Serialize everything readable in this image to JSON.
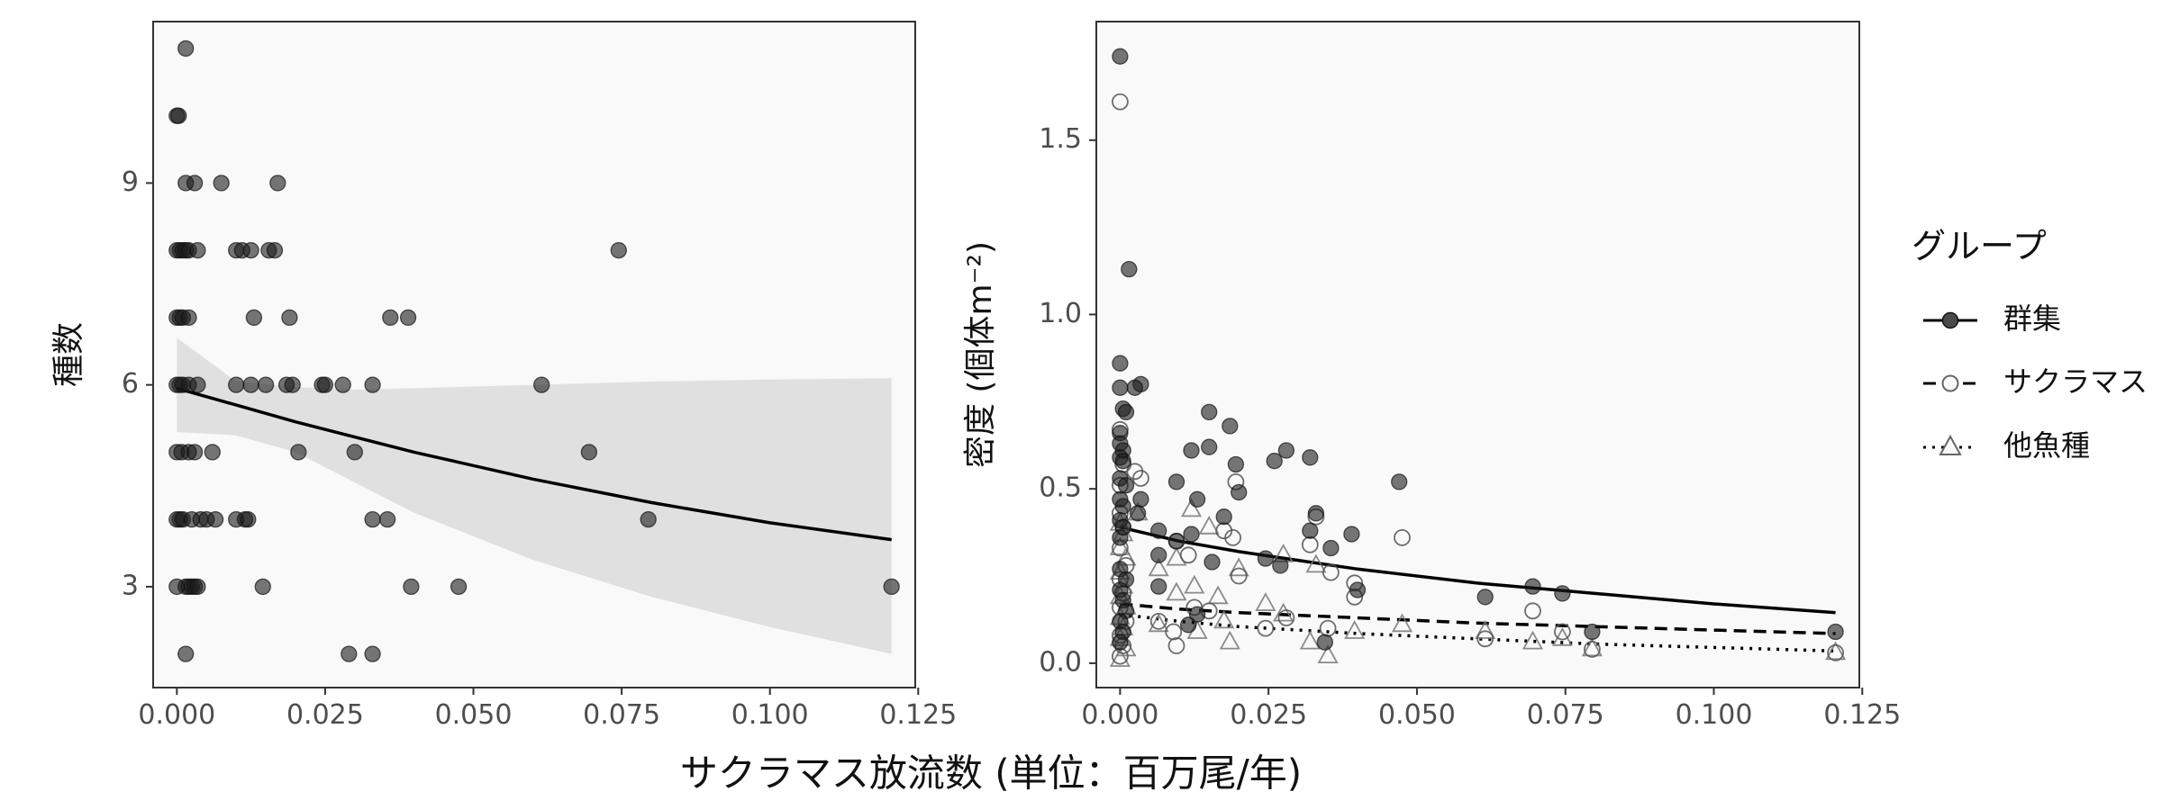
{
  "x_axis_label": "サクラマス放流数 (単位：百万尾/年)",
  "chart_data": [
    {
      "type": "scatter",
      "panel": "left",
      "ylabel": "種数",
      "xlim": [
        -0.004,
        0.1245
      ],
      "ylim": [
        1.5,
        11.4
      ],
      "xticks": [
        0.0,
        0.025,
        0.05,
        0.075,
        0.1,
        0.125
      ],
      "xtick_labels": [
        "0.000",
        "0.025",
        "0.050",
        "0.075",
        "0.100",
        "0.125"
      ],
      "yticks": [
        3,
        6,
        9
      ],
      "ytick_labels": [
        "3",
        "6",
        "9"
      ],
      "grid": false,
      "series": [
        {
          "points": [
            [
              0.0015,
              11
            ],
            [
              0.0,
              10
            ],
            [
              0.0003,
              10
            ],
            [
              0.0015,
              9
            ],
            [
              0.003,
              9
            ],
            [
              0.0075,
              9
            ],
            [
              0.017,
              9
            ],
            [
              0.0,
              8
            ],
            [
              0.0005,
              8
            ],
            [
              0.001,
              8
            ],
            [
              0.0015,
              8
            ],
            [
              0.002,
              8
            ],
            [
              0.0035,
              8
            ],
            [
              0.01,
              8
            ],
            [
              0.011,
              8
            ],
            [
              0.0125,
              8
            ],
            [
              0.0155,
              8
            ],
            [
              0.0165,
              8
            ],
            [
              0.0745,
              8
            ],
            [
              0.0,
              7
            ],
            [
              0.0005,
              7
            ],
            [
              0.001,
              7
            ],
            [
              0.002,
              7
            ],
            [
              0.013,
              7
            ],
            [
              0.019,
              7
            ],
            [
              0.036,
              7
            ],
            [
              0.039,
              7
            ],
            [
              0.0,
              6
            ],
            [
              0.0005,
              6
            ],
            [
              0.001,
              6
            ],
            [
              0.002,
              6
            ],
            [
              0.0035,
              6
            ],
            [
              0.01,
              6
            ],
            [
              0.0125,
              6
            ],
            [
              0.015,
              6
            ],
            [
              0.0185,
              6
            ],
            [
              0.0195,
              6
            ],
            [
              0.0245,
              6
            ],
            [
              0.025,
              6
            ],
            [
              0.028,
              6
            ],
            [
              0.033,
              6
            ],
            [
              0.0615,
              6
            ],
            [
              0.0,
              5
            ],
            [
              0.0008,
              5
            ],
            [
              0.002,
              5
            ],
            [
              0.003,
              5
            ],
            [
              0.006,
              5
            ],
            [
              0.0205,
              5
            ],
            [
              0.03,
              5
            ],
            [
              0.0695,
              5
            ],
            [
              0.0,
              4
            ],
            [
              0.0005,
              4
            ],
            [
              0.001,
              4
            ],
            [
              0.0025,
              4
            ],
            [
              0.004,
              4
            ],
            [
              0.005,
              4
            ],
            [
              0.0065,
              4
            ],
            [
              0.01,
              4
            ],
            [
              0.0115,
              4
            ],
            [
              0.012,
              4
            ],
            [
              0.033,
              4
            ],
            [
              0.0355,
              4
            ],
            [
              0.0795,
              4
            ],
            [
              0.0,
              3
            ],
            [
              0.0015,
              3
            ],
            [
              0.002,
              3
            ],
            [
              0.0025,
              3
            ],
            [
              0.003,
              3
            ],
            [
              0.0035,
              3
            ],
            [
              0.0145,
              3
            ],
            [
              0.0395,
              3
            ],
            [
              0.0475,
              3
            ],
            [
              0.1205,
              3
            ],
            [
              0.0015,
              2
            ],
            [
              0.029,
              2
            ],
            [
              0.033,
              2
            ]
          ]
        }
      ],
      "fit": {
        "x": [
          0.0,
          0.02,
          0.04,
          0.06,
          0.08,
          0.1,
          0.1205
        ],
        "y": [
          5.95,
          5.45,
          5.0,
          4.6,
          4.25,
          3.95,
          3.7
        ]
      },
      "ci_band": {
        "x": [
          0.0,
          0.01,
          0.02,
          0.03,
          0.04,
          0.06,
          0.08,
          0.1,
          0.1205
        ],
        "upper": [
          6.7,
          6.05,
          5.97,
          5.93,
          5.95,
          6.0,
          6.05,
          6.08,
          6.1
        ],
        "lower": [
          5.3,
          5.25,
          5.0,
          4.55,
          4.1,
          3.4,
          2.85,
          2.4,
          2.0
        ]
      }
    },
    {
      "type": "scatter",
      "panel": "right",
      "ylabel": "密度 (個体m⁻²)",
      "xlim": [
        -0.004,
        0.1245
      ],
      "ylim": [
        -0.07,
        1.84
      ],
      "xticks": [
        0.0,
        0.025,
        0.05,
        0.075,
        0.1,
        0.125
      ],
      "xtick_labels": [
        "0.000",
        "0.025",
        "0.050",
        "0.075",
        "0.100",
        "0.125"
      ],
      "yticks": [
        0.0,
        0.5,
        1.0,
        1.5
      ],
      "ytick_labels": [
        "0.0",
        "0.5",
        "1.0",
        "1.5"
      ],
      "grid": false,
      "legend": {
        "title": "グループ",
        "position": "right",
        "entries": [
          "群集",
          "サクラマス",
          "他魚種"
        ]
      },
      "series": [
        {
          "name": "群集",
          "marker": "filled-circle",
          "linestyle": "solid",
          "points": [
            [
              0.0,
              1.74
            ],
            [
              0.0015,
              1.13
            ],
            [
              0.0,
              0.86
            ],
            [
              0.0,
              0.79
            ],
            [
              0.0035,
              0.8
            ],
            [
              0.0025,
              0.79
            ],
            [
              0.0005,
              0.73
            ],
            [
              0.001,
              0.72
            ],
            [
              0.0,
              0.66
            ],
            [
              0.0,
              0.63
            ],
            [
              0.0005,
              0.61
            ],
            [
              0.0,
              0.59
            ],
            [
              0.0005,
              0.58
            ],
            [
              0.0,
              0.53
            ],
            [
              0.001,
              0.51
            ],
            [
              0.0,
              0.47
            ],
            [
              0.0035,
              0.47
            ],
            [
              0.0005,
              0.45
            ],
            [
              0.003,
              0.43
            ],
            [
              0.0,
              0.41
            ],
            [
              0.0005,
              0.39
            ],
            [
              0.0,
              0.36
            ],
            [
              0.0065,
              0.38
            ],
            [
              0.0065,
              0.31
            ],
            [
              0.0,
              0.27
            ],
            [
              0.001,
              0.24
            ],
            [
              0.0,
              0.21
            ],
            [
              0.0005,
              0.18
            ],
            [
              0.001,
              0.15
            ],
            [
              0.0,
              0.12
            ],
            [
              0.0005,
              0.09
            ],
            [
              0.0,
              0.06
            ],
            [
              0.0095,
              0.52
            ],
            [
              0.015,
              0.72
            ],
            [
              0.0185,
              0.68
            ],
            [
              0.0195,
              0.57
            ],
            [
              0.015,
              0.62
            ],
            [
              0.012,
              0.61
            ],
            [
              0.013,
              0.47
            ],
            [
              0.0175,
              0.42
            ],
            [
              0.02,
              0.49
            ],
            [
              0.028,
              0.61
            ],
            [
              0.026,
              0.58
            ],
            [
              0.032,
              0.59
            ],
            [
              0.033,
              0.43
            ],
            [
              0.032,
              0.38
            ],
            [
              0.0355,
              0.33
            ],
            [
              0.039,
              0.37
            ],
            [
              0.0345,
              0.06
            ],
            [
              0.04,
              0.21
            ],
            [
              0.047,
              0.52
            ],
            [
              0.027,
              0.28
            ],
            [
              0.0245,
              0.3
            ],
            [
              0.0155,
              0.29
            ],
            [
              0.0095,
              0.35
            ],
            [
              0.012,
              0.37
            ],
            [
              0.0065,
              0.22
            ],
            [
              0.013,
              0.14
            ],
            [
              0.0115,
              0.11
            ],
            [
              0.0615,
              0.19
            ],
            [
              0.0695,
              0.22
            ],
            [
              0.0745,
              0.2
            ],
            [
              0.0795,
              0.09
            ],
            [
              0.1205,
              0.09
            ]
          ]
        },
        {
          "name": "サクラマス",
          "marker": "open-circle",
          "linestyle": "dashed",
          "points": [
            [
              0.0,
              1.61
            ],
            [
              0.0,
              0.67
            ],
            [
              0.0005,
              0.57
            ],
            [
              0.0,
              0.51
            ],
            [
              0.0025,
              0.55
            ],
            [
              0.0,
              0.43
            ],
            [
              0.0005,
              0.39
            ],
            [
              0.0,
              0.33
            ],
            [
              0.001,
              0.28
            ],
            [
              0.0,
              0.24
            ],
            [
              0.0005,
              0.2
            ],
            [
              0.0,
              0.16
            ],
            [
              0.001,
              0.12
            ],
            [
              0.0,
              0.08
            ],
            [
              0.0005,
              0.05
            ],
            [
              0.0,
              0.02
            ],
            [
              0.0035,
              0.53
            ],
            [
              0.0095,
              0.35
            ],
            [
              0.0115,
              0.31
            ],
            [
              0.0175,
              0.38
            ],
            [
              0.019,
              0.36
            ],
            [
              0.0195,
              0.52
            ],
            [
              0.02,
              0.25
            ],
            [
              0.0125,
              0.16
            ],
            [
              0.015,
              0.15
            ],
            [
              0.0065,
              0.12
            ],
            [
              0.0095,
              0.05
            ],
            [
              0.009,
              0.09
            ],
            [
              0.0245,
              0.1
            ],
            [
              0.028,
              0.13
            ],
            [
              0.032,
              0.34
            ],
            [
              0.033,
              0.42
            ],
            [
              0.0355,
              0.26
            ],
            [
              0.0395,
              0.19
            ],
            [
              0.0395,
              0.23
            ],
            [
              0.035,
              0.1
            ],
            [
              0.0475,
              0.36
            ],
            [
              0.0615,
              0.07
            ],
            [
              0.0695,
              0.15
            ],
            [
              0.0745,
              0.09
            ],
            [
              0.0795,
              0.04
            ],
            [
              0.1205,
              0.03
            ]
          ]
        },
        {
          "name": "他魚種",
          "marker": "open-triangle",
          "linestyle": "dotted",
          "points": [
            [
              0.0,
              0.4
            ],
            [
              0.0005,
              0.37
            ],
            [
              0.0,
              0.33
            ],
            [
              0.001,
              0.3
            ],
            [
              0.0,
              0.26
            ],
            [
              0.0005,
              0.22
            ],
            [
              0.0,
              0.19
            ],
            [
              0.001,
              0.16
            ],
            [
              0.0,
              0.13
            ],
            [
              0.0005,
              0.1
            ],
            [
              0.0,
              0.07
            ],
            [
              0.001,
              0.04
            ],
            [
              0.0,
              0.01
            ],
            [
              0.003,
              0.43
            ],
            [
              0.0065,
              0.27
            ],
            [
              0.0065,
              0.11
            ],
            [
              0.0095,
              0.3
            ],
            [
              0.0095,
              0.2
            ],
            [
              0.012,
              0.44
            ],
            [
              0.0125,
              0.22
            ],
            [
              0.013,
              0.09
            ],
            [
              0.015,
              0.39
            ],
            [
              0.0165,
              0.19
            ],
            [
              0.0175,
              0.12
            ],
            [
              0.0185,
              0.06
            ],
            [
              0.02,
              0.27
            ],
            [
              0.0245,
              0.17
            ],
            [
              0.0275,
              0.31
            ],
            [
              0.0275,
              0.14
            ],
            [
              0.032,
              0.06
            ],
            [
              0.033,
              0.28
            ],
            [
              0.035,
              0.02
            ],
            [
              0.0395,
              0.09
            ],
            [
              0.0475,
              0.11
            ],
            [
              0.0615,
              0.09
            ],
            [
              0.0695,
              0.06
            ],
            [
              0.0745,
              0.07
            ],
            [
              0.0795,
              0.04
            ],
            [
              0.1205,
              0.03
            ]
          ]
        }
      ],
      "fits": [
        {
          "name": "群集",
          "linestyle": "solid",
          "x": [
            0.0,
            0.01,
            0.02,
            0.03,
            0.04,
            0.06,
            0.08,
            0.1,
            0.1205
          ],
          "y": [
            0.39,
            0.35,
            0.32,
            0.295,
            0.27,
            0.23,
            0.2,
            0.17,
            0.145
          ]
        },
        {
          "name": "サクラマス",
          "linestyle": "dashed",
          "x": [
            0.0,
            0.01,
            0.02,
            0.04,
            0.06,
            0.08,
            0.1,
            0.1205
          ],
          "y": [
            0.17,
            0.155,
            0.145,
            0.13,
            0.115,
            0.105,
            0.095,
            0.085
          ]
        },
        {
          "name": "他魚種",
          "linestyle": "dotted",
          "x": [
            0.0,
            0.01,
            0.02,
            0.04,
            0.06,
            0.08,
            0.1,
            0.1205
          ],
          "y": [
            0.14,
            0.12,
            0.105,
            0.085,
            0.07,
            0.055,
            0.045,
            0.035
          ]
        }
      ]
    }
  ]
}
